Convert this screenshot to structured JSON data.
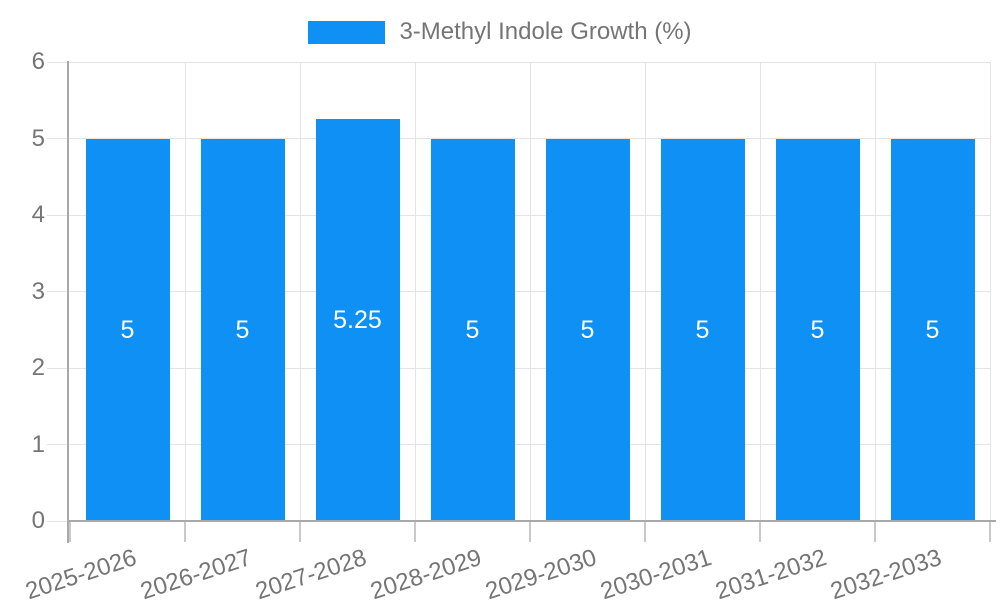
{
  "chart_data": {
    "type": "bar",
    "legend": "3-Methyl Indole Growth (%)",
    "legend_position": "top-center",
    "categories": [
      "2025-2026",
      "2026-2027",
      "2027-2028",
      "2028-2029",
      "2029-2030",
      "2030-2031",
      "2031-2032",
      "2032-2033"
    ],
    "values": [
      5,
      5,
      5.25,
      5,
      5,
      5,
      5,
      5
    ],
    "bar_labels": [
      "5",
      "5",
      "5.25",
      "5",
      "5",
      "5",
      "5",
      "5"
    ],
    "yticks": [
      0,
      1,
      2,
      3,
      4,
      5,
      6
    ],
    "ylim": [
      0,
      6
    ],
    "xlabel": "",
    "ylabel": "",
    "grid": true,
    "x_label_rotation_deg": -18,
    "colors": {
      "bar": "#0e90f5",
      "bar_label": "#ffffff",
      "axis_text": "#757575",
      "gridline": "#e4e4e4",
      "axis_line": "#a9a9a9",
      "tick": "#c9c9c9",
      "background": "#ffffff"
    }
  }
}
